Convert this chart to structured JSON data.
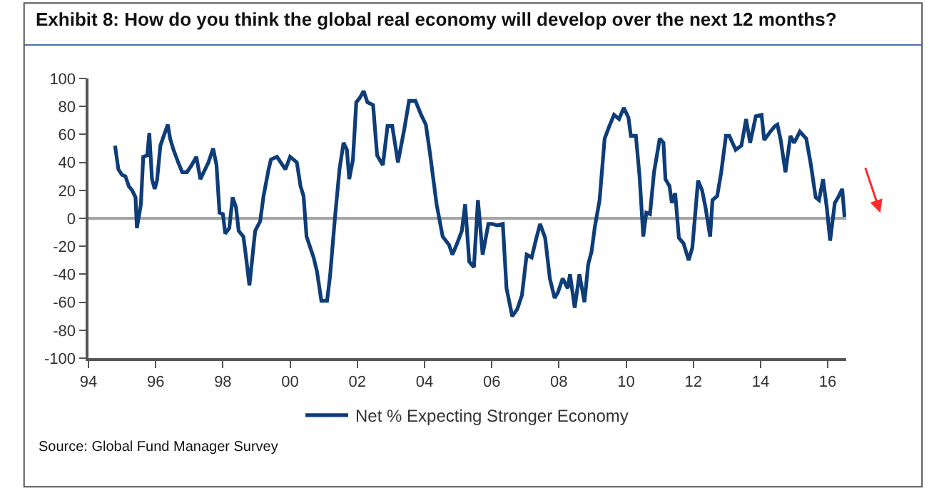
{
  "chart_data": {
    "type": "line",
    "title": "Exhibit 8: How do you think the global real economy will develop over the next 12 months?",
    "annotations": [
      "Source: Global Fund Manager Survey"
    ],
    "x": [
      1994.79,
      1994.89,
      1995.0,
      1995.1,
      1995.2,
      1995.3,
      1995.4,
      1995.44,
      1995.56,
      1995.63,
      1995.75,
      1995.81,
      1995.89,
      1995.97,
      1996.04,
      1996.14,
      1996.24,
      1996.36,
      1996.43,
      1996.53,
      1996.67,
      1996.79,
      1996.93,
      1997.07,
      1997.21,
      1997.33,
      1997.43,
      1997.57,
      1997.71,
      1997.81,
      1997.9,
      1998.0,
      1998.07,
      1998.19,
      1998.29,
      1998.39,
      1998.47,
      1998.61,
      1998.67,
      1998.79,
      1998.96,
      1999.11,
      1999.21,
      1999.36,
      1999.43,
      1999.61,
      1999.86,
      2000.0,
      2000.2,
      2000.31,
      2000.4,
      2000.49,
      2000.7,
      2000.8,
      2000.93,
      2001.1,
      2001.19,
      2001.33,
      2001.47,
      2001.59,
      2001.69,
      2001.76,
      2001.87,
      2001.97,
      2002.07,
      2002.19,
      2002.3,
      2002.47,
      2002.59,
      2002.76,
      2002.9,
      2003.04,
      2003.21,
      2003.4,
      2003.54,
      2003.73,
      2003.9,
      2004.04,
      2004.16,
      2004.36,
      2004.54,
      2004.73,
      2004.83,
      2004.97,
      2005.11,
      2005.21,
      2005.33,
      2005.47,
      2005.59,
      2005.73,
      2005.9,
      2006.01,
      2006.16,
      2006.33,
      2006.44,
      2006.61,
      2006.76,
      2006.9,
      2007.04,
      2007.19,
      2007.33,
      2007.44,
      2007.59,
      2007.73,
      2007.87,
      2007.97,
      2008.11,
      2008.26,
      2008.33,
      2008.47,
      2008.61,
      2008.76,
      2008.87,
      2008.97,
      2009.07,
      2009.21,
      2009.36,
      2009.5,
      2009.64,
      2009.79,
      2009.93,
      2010.07,
      2010.14,
      2010.29,
      2010.4,
      2010.51,
      2010.6,
      2010.71,
      2010.83,
      2011.0,
      2011.11,
      2011.17,
      2011.29,
      2011.36,
      2011.46,
      2011.57,
      2011.71,
      2011.86,
      2011.97,
      2012.14,
      2012.26,
      2012.36,
      2012.5,
      2012.57,
      2012.71,
      2012.83,
      2012.97,
      2013.07,
      2013.26,
      2013.43,
      2013.57,
      2013.69,
      2013.86,
      2014.03,
      2014.11,
      2014.29,
      2014.43,
      2014.5,
      2014.6,
      2014.74,
      2014.89,
      2015.0,
      2015.17,
      2015.36,
      2015.5,
      2015.64,
      2015.74,
      2015.86,
      2015.97,
      2016.07,
      2016.21,
      2016.31,
      2016.43,
      2016.5
    ],
    "series": [
      {
        "name": "Net % Expecting Stronger Economy",
        "color": "#0e3d78",
        "values": [
          52,
          35,
          31,
          30,
          23,
          20,
          15,
          -7,
          10,
          44,
          45,
          61,
          28,
          21,
          27,
          52,
          59,
          67,
          57,
          49,
          40,
          33,
          33,
          38,
          44,
          28,
          33,
          40,
          50,
          38,
          4,
          3,
          -11,
          -7,
          15,
          8,
          -9,
          -13,
          -24,
          -48,
          -9,
          -2,
          16,
          35,
          42,
          44,
          35,
          44,
          40,
          23,
          16,
          -13,
          -28,
          -38,
          -59,
          -59,
          -41,
          -1,
          35,
          54,
          49,
          28,
          42,
          83,
          86,
          91,
          83,
          81,
          45,
          38,
          66,
          66,
          40,
          64,
          84,
          84,
          74,
          67,
          47,
          10,
          -13,
          -19,
          -26,
          -18,
          -9,
          10,
          -31,
          -35,
          13,
          -26,
          -4,
          -4,
          -5,
          -4,
          -50,
          -70,
          -65,
          -55,
          -26,
          -28,
          -14,
          -4,
          -14,
          -43,
          -57,
          -53,
          -43,
          -50,
          -40,
          -64,
          -40,
          -60,
          -33,
          -24,
          -6,
          13,
          57,
          66,
          74,
          71,
          79,
          72,
          59,
          59,
          30,
          -13,
          4,
          3,
          33,
          57,
          54,
          28,
          23,
          11,
          18,
          -14,
          -18,
          -30,
          -21,
          27,
          20,
          8,
          -13,
          13,
          16,
          33,
          59,
          59,
          49,
          52,
          71,
          54,
          73,
          74,
          56,
          62,
          66,
          67,
          56,
          33,
          59,
          54,
          62,
          57,
          38,
          15,
          13,
          28,
          8,
          -16,
          11,
          15,
          21,
          1
        ]
      }
    ],
    "xlim": [
      1994,
      2016.55
    ],
    "xticks": [
      {
        "value": 1994,
        "label": "94"
      },
      {
        "value": 1996,
        "label": "96"
      },
      {
        "value": 1998,
        "label": "98"
      },
      {
        "value": 2000,
        "label": "00"
      },
      {
        "value": 2002,
        "label": "02"
      },
      {
        "value": 2004,
        "label": "04"
      },
      {
        "value": 2006,
        "label": "06"
      },
      {
        "value": 2008,
        "label": "08"
      },
      {
        "value": 2010,
        "label": "10"
      },
      {
        "value": 2012,
        "label": "12"
      },
      {
        "value": 2014,
        "label": "14"
      },
      {
        "value": 2016,
        "label": "16"
      }
    ],
    "ylim": [
      -100,
      100
    ],
    "yticks": [
      -100,
      -80,
      -60,
      -40,
      -20,
      0,
      20,
      40,
      60,
      80,
      100
    ],
    "ref_lines": [
      {
        "axis": "y",
        "value": 0,
        "color": "#a6a6a6"
      }
    ],
    "grid": false,
    "legend": "bottom",
    "marker": "none",
    "line_style": "solid"
  }
}
